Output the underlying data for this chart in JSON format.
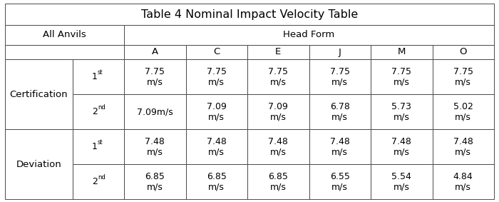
{
  "title": "Table 4 Nominal Impact Velocity Table",
  "col_headers": [
    "A",
    "C",
    "E",
    "J",
    "M",
    "O"
  ],
  "head_form_label": "Head Form",
  "all_anvils_label": "All Anvils",
  "row_groups": [
    {
      "label": "Certification",
      "rows": [
        {
          "sub_label_base": "1",
          "sub_label_super": "st",
          "values": [
            "7.75\nm/s",
            "7.75\nm/s",
            "7.75\nm/s",
            "7.75\nm/s",
            "7.75\nm/s",
            "7.75\nm/s"
          ]
        },
        {
          "sub_label_base": "2",
          "sub_label_super": "nd",
          "values": [
            "7.09m/s",
            "7.09\nm/s",
            "7.09\nm/s",
            "6.78\nm/s",
            "5.73\nm/s",
            "5.02\nm/s"
          ]
        }
      ]
    },
    {
      "label": "Deviation",
      "rows": [
        {
          "sub_label_base": "1",
          "sub_label_super": "st",
          "values": [
            "7.48\nm/s",
            "7.48\nm/s",
            "7.48\nm/s",
            "7.48\nm/s",
            "7.48\nm/s",
            "7.48\nm/s"
          ]
        },
        {
          "sub_label_base": "2",
          "sub_label_super": "nd",
          "values": [
            "6.85\nm/s",
            "6.85\nm/s",
            "6.85\nm/s",
            "6.55\nm/s",
            "5.54\nm/s",
            "4.84\nm/s"
          ]
        }
      ]
    }
  ],
  "bg_color": "#ffffff",
  "border_color": "#4a4a4a",
  "text_color": "#000000",
  "title_fontsize": 11.5,
  "header_fontsize": 9.5,
  "cell_fontsize": 9.0,
  "sublabel_fontsize": 9.0,
  "sublabel_super_fontsize": 6.0
}
